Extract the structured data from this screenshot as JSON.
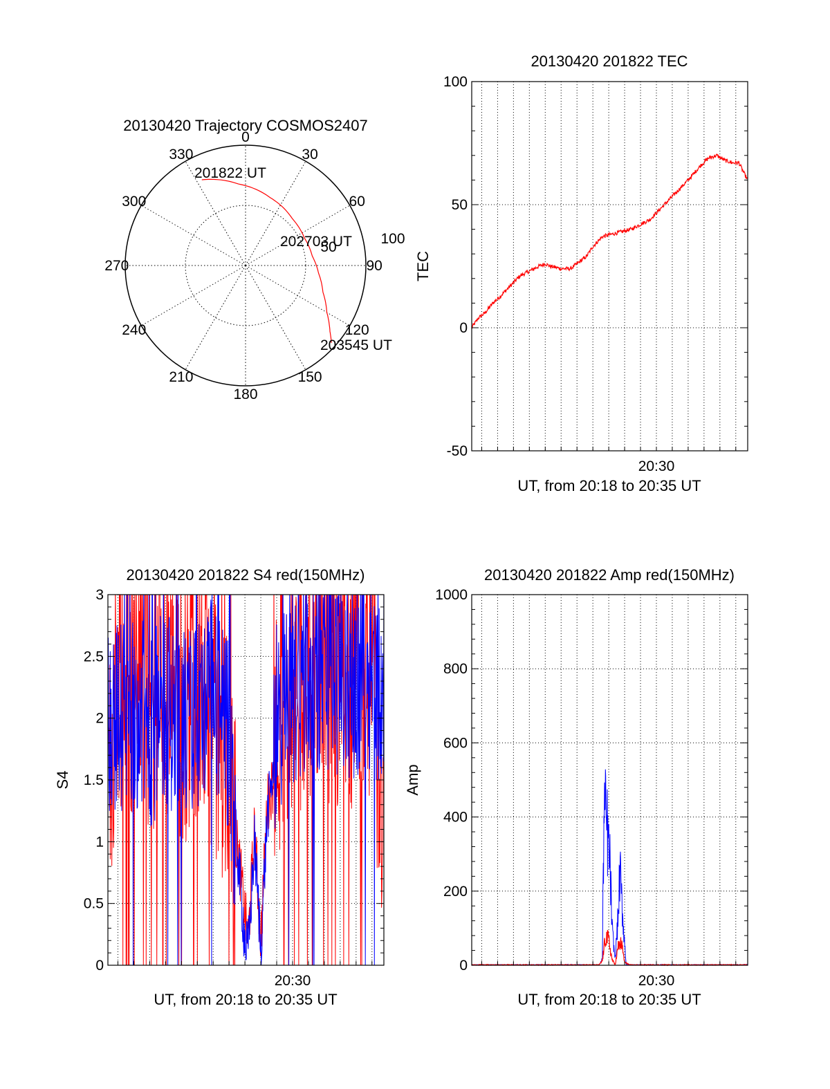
{
  "colors": {
    "primary": "#ff0000",
    "secondary": "#0000ff",
    "axis": "#000000",
    "grid": "#000000"
  },
  "polar": {
    "title": "20130420 Trajectory COSMOS2407",
    "azimuth_labels": [
      "0",
      "30",
      "60",
      "90",
      "120",
      "150",
      "180",
      "210",
      "240",
      "270",
      "300",
      "330"
    ],
    "azimuths": [
      0,
      30,
      60,
      90,
      120,
      150,
      180,
      210,
      240,
      270,
      300,
      330
    ],
    "ring_labels": [
      "50",
      "100"
    ],
    "ring_values": [
      50,
      100
    ],
    "max_radius": 100,
    "track": {
      "az": [
        333,
        355,
        20,
        45,
        65,
        82,
        96,
        109,
        120,
        128,
        132
      ],
      "r": [
        80,
        68,
        60,
        55,
        54,
        56,
        61,
        68,
        78,
        89,
        96
      ]
    },
    "markers": [
      {
        "text": "201822 UT",
        "az": 333,
        "r": 80
      },
      {
        "text": "202703 UT",
        "az": 82,
        "r": 56
      },
      {
        "text": "203545 UT",
        "az": 132,
        "r": 96
      }
    ]
  },
  "tec": {
    "title": "20130420 201822 TEC",
    "ylabel": "TEC",
    "xlabel": "UT, from 20:18 to 20:35 UT",
    "xtick_labels": [
      "20:30"
    ],
    "ytick_labels": [
      "-50",
      "0",
      "50",
      "100"
    ]
  },
  "s4": {
    "title": "20130420 201822 S4 red(150MHz)",
    "ylabel": "S4",
    "xlabel": "UT, from 20:18 to 20:35 UT",
    "xtick_labels": [
      "20:30"
    ],
    "ytick_labels": [
      "0",
      "0.5",
      "1",
      "1.5",
      "2",
      "2.5",
      "3"
    ]
  },
  "amp": {
    "title": "20130420 201822 Amp red(150MHz)",
    "ylabel": "Amp",
    "xlabel": "UT, from 20:18 to 20:35 UT",
    "xtick_labels": [
      "20:30"
    ],
    "ytick_labels": [
      "0",
      "200",
      "400",
      "600",
      "800",
      "1000"
    ]
  },
  "chart_data": [
    {
      "type": "scatter",
      "title": "20130420 Trajectory COSMOS2407",
      "coordinate_system": "polar",
      "series": [
        {
          "color": "#ff0000",
          "azimuth_deg": [
            333,
            355,
            20,
            45,
            65,
            82,
            96,
            109,
            120,
            128,
            132
          ],
          "radius": [
            80,
            68,
            60,
            55,
            54,
            56,
            61,
            68,
            78,
            89,
            96
          ]
        }
      ],
      "rlim": [
        0,
        100
      ],
      "grid": true
    },
    {
      "type": "line",
      "title": "20130420 201822 TEC",
      "xlabel": "UT, from 20:18 to 20:35 UT",
      "ylabel": "TEC",
      "xlim_minutes_after_2018": [
        0.37,
        17.75
      ],
      "ylim": [
        -50,
        100
      ],
      "grid": true,
      "series": [
        {
          "color": "#ff0000",
          "x_minutes_after_2018": [
            0.37,
            0.8,
            1.2,
            1.7,
            2.2,
            2.8,
            3.4,
            4.0,
            4.6,
            5.0,
            5.3,
            6.0,
            6.6,
            7.0,
            7.6,
            8.0,
            8.6,
            9.2,
            9.8,
            10.4,
            11.0,
            11.6,
            12.2,
            12.8,
            13.4,
            14.0,
            14.4,
            14.8,
            15.3,
            15.8,
            16.3,
            16.8,
            17.2,
            17.5,
            17.75
          ],
          "y": [
            0,
            4,
            6,
            10,
            13,
            17,
            21,
            23,
            25,
            26,
            25,
            24,
            24,
            26,
            29,
            33,
            37,
            38,
            39,
            40,
            42,
            44,
            48,
            52,
            56,
            60,
            63,
            66,
            69,
            70,
            68,
            67,
            67,
            63,
            60
          ]
        }
      ]
    },
    {
      "type": "line",
      "title": "20130420 201822 S4 red(150MHz)",
      "xlabel": "UT, from 20:18 to 20:35 UT",
      "ylabel": "S4",
      "xlim_minutes_after_2018": [
        0.37,
        17.75
      ],
      "ylim": [
        0,
        3
      ],
      "grid": true,
      "series": [
        {
          "color": "#ff0000",
          "x_minutes_after_2018": [
            0.4,
            1.0,
            2.0,
            3.0,
            4.0,
            5.0,
            6.0,
            7.0,
            8.0,
            8.4,
            8.6,
            9.0,
            9.2,
            9.6,
            10.0,
            10.4,
            10.8,
            11.0,
            12.0,
            13.0,
            14.0,
            15.0,
            16.0,
            17.0,
            17.7
          ],
          "y": [
            1.4,
            2.4,
            2.3,
            2.1,
            2.2,
            2.0,
            2.3,
            2.0,
            1.6,
            1.0,
            0.9,
            0.4,
            0.2,
            1.1,
            0.2,
            1.3,
            1.5,
            1.9,
            2.2,
            2.4,
            2.5,
            2.2,
            2.4,
            2.3,
            1.3
          ]
        },
        {
          "color": "#0000ff",
          "x_minutes_after_2018": [
            0.4,
            1.0,
            2.0,
            3.0,
            4.0,
            5.0,
            6.0,
            7.0,
            8.0,
            8.4,
            8.6,
            9.0,
            9.2,
            9.6,
            10.0,
            10.4,
            10.8,
            11.0,
            12.0,
            13.0,
            14.0,
            15.0,
            16.0,
            17.0,
            17.7
          ],
          "y": [
            2.0,
            2.0,
            2.1,
            1.9,
            2.1,
            1.9,
            2.0,
            2.2,
            1.8,
            1.1,
            0.8,
            0.2,
            0.1,
            1.0,
            0.15,
            1.2,
            1.6,
            2.0,
            2.2,
            2.3,
            2.4,
            2.3,
            2.3,
            2.4,
            2.0
          ]
        }
      ]
    },
    {
      "type": "line",
      "title": "20130420 201822 Amp red(150MHz)",
      "xlabel": "UT, from 20:18 to 20:35 UT",
      "ylabel": "Amp",
      "xlim_minutes_after_2018": [
        0.37,
        17.75
      ],
      "ylim": [
        0,
        1000
      ],
      "grid": true,
      "series": [
        {
          "color": "#0000ff",
          "x_minutes_after_2018": [
            0.37,
            8.4,
            8.6,
            8.7,
            8.9,
            9.1,
            9.2,
            9.4,
            9.6,
            9.7,
            9.9,
            10.1,
            10.3,
            17.75
          ],
          "y": [
            0,
            0,
            20,
            500,
            430,
            300,
            120,
            20,
            160,
            300,
            140,
            0,
            0,
            0
          ]
        },
        {
          "color": "#ff0000",
          "x_minutes_after_2018": [
            0.37,
            8.4,
            8.6,
            8.8,
            9.0,
            9.2,
            9.4,
            9.6,
            9.8,
            10.0,
            10.3,
            17.75
          ],
          "y": [
            0,
            0,
            15,
            90,
            80,
            20,
            0,
            60,
            70,
            10,
            0,
            0
          ]
        }
      ]
    }
  ]
}
